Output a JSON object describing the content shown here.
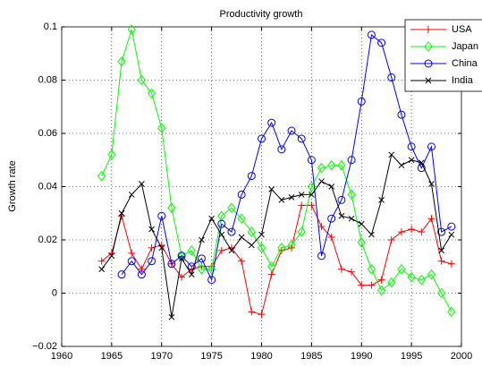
{
  "chart_data": {
    "type": "line",
    "title": "Productivity growth",
    "y_label": "Growth rate",
    "x": [
      1964,
      1965,
      1966,
      1967,
      1968,
      1969,
      1970,
      1971,
      1972,
      1973,
      1974,
      1975,
      1976,
      1977,
      1978,
      1979,
      1980,
      1981,
      1982,
      1983,
      1984,
      1985,
      1986,
      1987,
      1988,
      1989,
      1990,
      1991,
      1992,
      1993,
      1994,
      1995,
      1996,
      1997,
      1998,
      1999
    ],
    "series": [
      {
        "name": "USA",
        "color": "#ff0000",
        "marker": "+",
        "values": [
          0.012,
          0.015,
          0.029,
          0.015,
          0.009,
          0.017,
          0.018,
          0.011,
          0.006,
          0.009,
          0.01,
          0.01,
          0.016,
          0.017,
          0.012,
          -0.007,
          -0.008,
          0.007,
          0.016,
          0.017,
          0.033,
          0.033,
          0.025,
          0.021,
          0.009,
          0.008,
          0.003,
          0.003,
          0.005,
          0.02,
          0.023,
          0.024,
          0.023,
          0.028,
          0.012,
          0.011
        ]
      },
      {
        "name": "Japan",
        "color": "#00ff00",
        "marker": "d",
        "values": [
          0.044,
          0.052,
          0.087,
          0.099,
          0.08,
          0.075,
          0.062,
          0.032,
          0.014,
          0.016,
          0.009,
          0.009,
          0.029,
          0.032,
          0.028,
          0.023,
          0.017,
          0.01,
          0.017,
          0.018,
          0.023,
          0.04,
          0.047,
          0.048,
          0.048,
          0.037,
          0.019,
          0.009,
          0.001,
          0.004,
          0.009,
          0.006,
          0.005,
          0.007,
          0.0,
          -0.007
        ]
      },
      {
        "name": "China",
        "color": "#0000ff",
        "marker": "o",
        "values": [
          null,
          null,
          0.007,
          0.012,
          0.007,
          0.012,
          0.029,
          0.011,
          0.014,
          0.01,
          0.013,
          0.005,
          0.026,
          0.023,
          0.037,
          0.044,
          0.058,
          0.064,
          0.054,
          0.061,
          0.058,
          0.05,
          0.014,
          0.028,
          0.035,
          0.05,
          0.072,
          0.097,
          0.094,
          0.081,
          0.067,
          0.055,
          0.047,
          0.055,
          0.023,
          0.025
        ]
      },
      {
        "name": "India",
        "color": "#000000",
        "marker": "x",
        "values": [
          0.009,
          0.014,
          0.03,
          0.037,
          0.041,
          0.024,
          0.017,
          -0.009,
          0.013,
          0.007,
          0.02,
          0.028,
          0.022,
          0.016,
          0.021,
          0.018,
          0.022,
          0.039,
          0.035,
          0.036,
          0.037,
          0.037,
          0.042,
          0.04,
          0.029,
          0.028,
          0.026,
          0.022,
          0.035,
          0.052,
          0.048,
          0.05,
          0.049,
          0.041,
          0.016,
          0.022
        ]
      }
    ],
    "xlim": [
      1960,
      2000
    ],
    "xticks": [
      1960,
      1965,
      1970,
      1975,
      1980,
      1985,
      1990,
      1995,
      2000
    ],
    "ylim": [
      -0.02,
      0.1
    ],
    "yticks": [
      {
        "value": -0.02,
        "label": "−0.02"
      },
      0,
      0.02,
      0.04,
      0.06,
      0.08,
      0.1
    ],
    "grid": true,
    "legend": "upper right"
  }
}
